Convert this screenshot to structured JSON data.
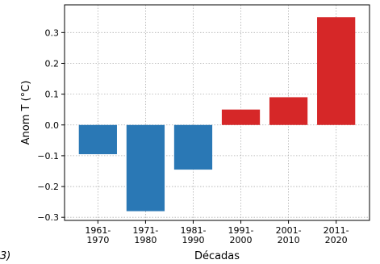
{
  "chart_data": {
    "type": "bar",
    "categories": [
      "1961-1970",
      "1971-1980",
      "1981-1990",
      "1991-2000",
      "2001-2010",
      "2011-2020"
    ],
    "category_lines": [
      [
        "1961-",
        "1970"
      ],
      [
        "1971-",
        "1980"
      ],
      [
        "1981-",
        "1990"
      ],
      [
        "1991-",
        "2000"
      ],
      [
        "2001-",
        "2010"
      ],
      [
        "2011-",
        "2020"
      ]
    ],
    "values": [
      -0.095,
      -0.28,
      -0.145,
      0.05,
      0.09,
      0.35
    ],
    "colors": [
      "#2a78b5",
      "#2a78b5",
      "#2a78b5",
      "#d62728",
      "#d62728",
      "#d62728"
    ],
    "xlabel": "Décadas",
    "ylabel": "Anom T (°C)",
    "ylim": [
      -0.31,
      0.39
    ],
    "yticks": [
      -0.3,
      -0.2,
      -0.1,
      0.0,
      0.1,
      0.2,
      0.3
    ],
    "ytick_labels": [
      "−0.3",
      "−0.2",
      "−0.1",
      "0.0",
      "0.1",
      "0.2",
      "0.3"
    ],
    "grid": true
  },
  "corner_label": "3)"
}
